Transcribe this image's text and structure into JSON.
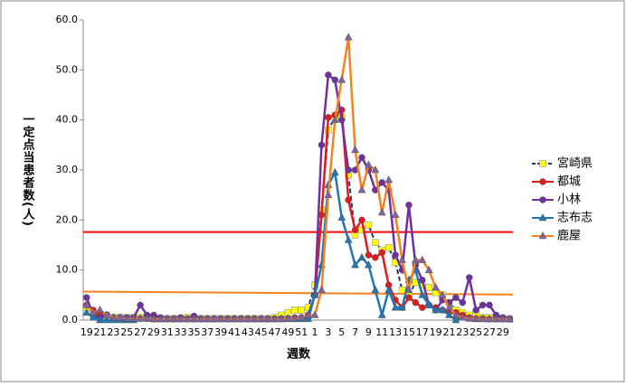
{
  "chart_data": {
    "type": "line",
    "y_label": "一定点当患者数(人)",
    "x_label": "週数",
    "categories": [
      "19",
      null,
      "21",
      null,
      "23",
      null,
      "25",
      null,
      "27",
      null,
      "29",
      null,
      "31",
      null,
      "33",
      null,
      "35",
      null,
      "37",
      null,
      "39",
      null,
      "41",
      null,
      "43",
      null,
      "45",
      null,
      "47",
      null,
      "49",
      null,
      "51",
      null,
      "1",
      null,
      "3",
      null,
      "5",
      null,
      "7",
      null,
      "9",
      null,
      "11",
      null,
      "13",
      null,
      "15",
      null,
      "17",
      null,
      "19",
      null,
      "21",
      null,
      "23",
      null,
      "25",
      null,
      "27",
      null,
      "29",
      null
    ],
    "series": [
      {
        "name": "宮崎県",
        "color": "#ffff00",
        "line_color": "#1f3864",
        "dashed": true,
        "marker": "square",
        "values": [
          2.5,
          1,
          1,
          1,
          0.5,
          0.5,
          0.5,
          0.5,
          0.5,
          0.5,
          0.3,
          0.3,
          0.3,
          0.3,
          0.3,
          0.5,
          0.5,
          0.3,
          0.3,
          0.3,
          0.3,
          0.3,
          0.3,
          0.3,
          0.3,
          0.3,
          0.3,
          0.3,
          0.5,
          1,
          1.5,
          2,
          2,
          2.5,
          7,
          22,
          38,
          40.5,
          40.5,
          29,
          17,
          18,
          19,
          15.5,
          14,
          14.5,
          11.5,
          6,
          5,
          7.5,
          7,
          6.5,
          5.5,
          5,
          3.5,
          2,
          1.5,
          1,
          1,
          0.5,
          0.5,
          0.3,
          0.3,
          0.2
        ]
      },
      {
        "name": "都城",
        "color": "#e31a1c",
        "marker": "circle",
        "values": [
          3,
          2,
          1,
          1,
          0.5,
          0.5,
          0.3,
          0.3,
          0.3,
          0.3,
          0.2,
          0.2,
          0.2,
          0.2,
          0.2,
          0.2,
          0.2,
          0.2,
          0.2,
          0.2,
          0.2,
          0.2,
          0.2,
          0.2,
          0.2,
          0.2,
          0.2,
          0.2,
          0.2,
          0.2,
          0.3,
          0.5,
          0.5,
          1,
          5,
          21,
          40.5,
          41,
          42,
          24,
          18,
          20,
          13,
          12.5,
          13.5,
          7,
          4,
          2.5,
          4.5,
          3.5,
          2.5,
          3,
          2.5,
          2,
          1.5,
          1.5,
          1,
          0.5,
          0.3,
          0.3,
          0.2,
          0.2,
          0.2,
          0.2
        ]
      },
      {
        "name": "小林",
        "color": "#7030a0",
        "marker": "circle",
        "values": [
          4.5,
          1,
          0.5,
          1,
          0.5,
          0.5,
          0.5,
          0.5,
          3,
          1,
          1,
          0.5,
          0.3,
          0.3,
          0.5,
          0.3,
          0.8,
          0.3,
          0.3,
          0.3,
          0.3,
          0.3,
          0.3,
          0.3,
          0.3,
          0.3,
          0.3,
          0.3,
          0.3,
          0.3,
          0.3,
          0.3,
          0.5,
          0.5,
          5,
          35,
          49,
          48,
          40,
          30,
          30,
          32.5,
          30,
          26,
          27.5,
          26,
          13,
          10,
          23,
          11,
          8,
          3,
          2,
          4,
          3.5,
          4.5,
          3.5,
          8.5,
          2,
          3,
          3,
          1,
          0.5,
          0.3
        ]
      },
      {
        "name": "志布志",
        "color": "#1f78b4",
        "marker": "triangle",
        "values": [
          1.5,
          0.5,
          0,
          0,
          0,
          0,
          0,
          0,
          0.3,
          0.3,
          0.2,
          0.2,
          0.2,
          0.2,
          0.2,
          0.2,
          0.2,
          0.2,
          0.2,
          0.2,
          0.2,
          0.2,
          0.2,
          0.2,
          0.2,
          0.2,
          0.2,
          0.2,
          0.2,
          0.2,
          0.2,
          0.2,
          0.2,
          0.2,
          5,
          11,
          27,
          29.5,
          20.5,
          16,
          11,
          12.5,
          11,
          6,
          1,
          6,
          2.5,
          2.5,
          8,
          10,
          5,
          3,
          2,
          2,
          1,
          0,
          0.5,
          0.3,
          0.2,
          0.2,
          0.2,
          0.2,
          0.2,
          0.2
        ]
      },
      {
        "name": "鹿屋",
        "color": "#f58220",
        "marker_color": "#8064a2",
        "marker": "triangle",
        "values": [
          3,
          1.5,
          2,
          1,
          0.5,
          0.5,
          0.3,
          0.3,
          0.3,
          0.3,
          0.2,
          0.2,
          0.2,
          0.2,
          0.2,
          0.2,
          0.2,
          0.2,
          0.2,
          0.2,
          0.2,
          0.2,
          0.2,
          0.2,
          0.2,
          0.2,
          0.2,
          0.2,
          0.2,
          0.2,
          0.3,
          0.3,
          0.5,
          1,
          1,
          6,
          25,
          40,
          48,
          56.5,
          34,
          26,
          31,
          30,
          21.5,
          28,
          21,
          12,
          6,
          12,
          12,
          10,
          6.5,
          5,
          2.5,
          1,
          0.5,
          0.3,
          0.3,
          0.2,
          0.2,
          0.2,
          0.2,
          0.2
        ]
      }
    ],
    "reference_lines": [
      {
        "color": "#ff0000",
        "values": [
          17.6,
          17.6
        ]
      },
      {
        "color": "#f58220",
        "values": [
          5.7,
          5.1
        ]
      }
    ],
    "ylim": [
      0,
      60
    ],
    "yticks": [
      {
        "value": 0,
        "label": "0.0"
      },
      {
        "value": 10,
        "label": "10.0"
      },
      {
        "value": 20,
        "label": "20.0"
      },
      {
        "value": 30,
        "label": "30.0"
      },
      {
        "value": 40,
        "label": "40.0"
      },
      {
        "value": 50,
        "label": "50.0"
      },
      {
        "value": 60,
        "label": "60.0"
      }
    ],
    "grid": false
  }
}
